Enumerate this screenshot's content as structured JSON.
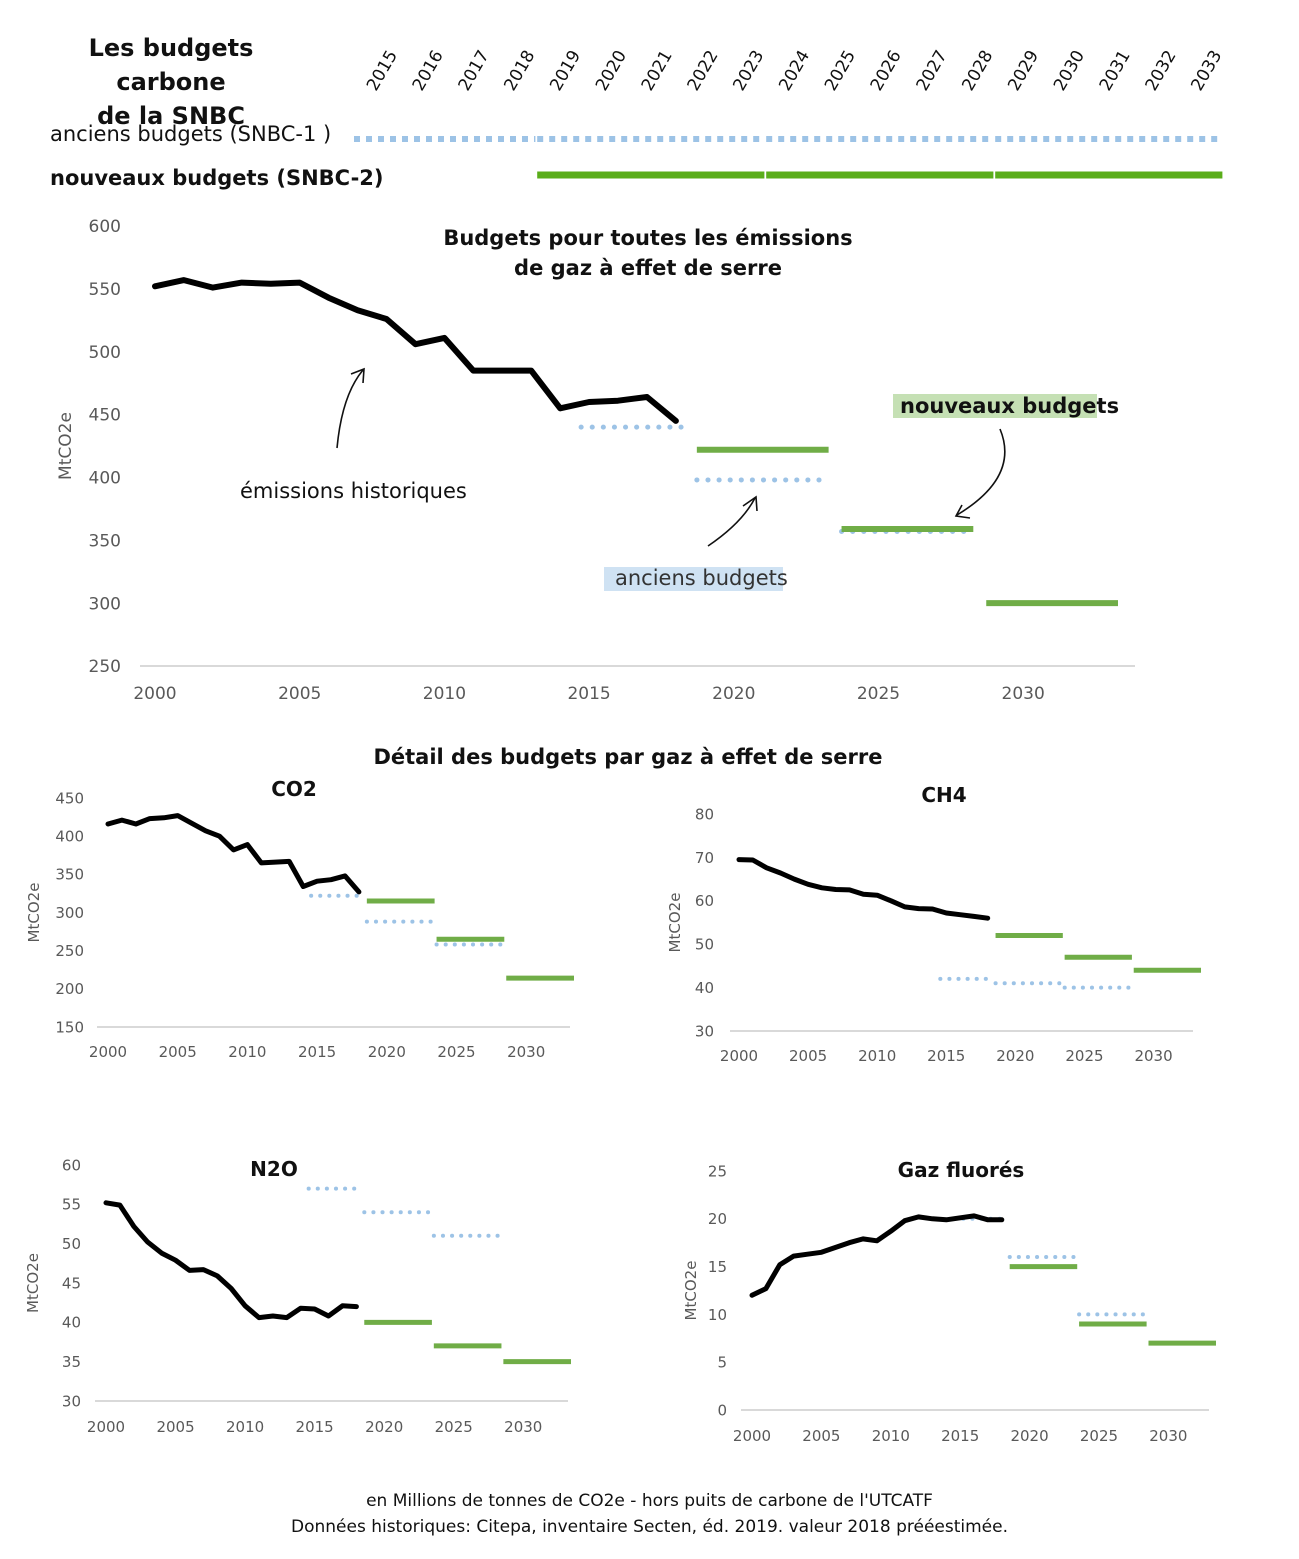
{
  "header": {
    "title_line1": "Les budgets carbone",
    "title_line2": "de la SNBC",
    "old_label": "anciens budgets (SNBC-1 )",
    "new_label": "nouveaux budgets (SNBC-2)",
    "years": [
      "2015",
      "2016",
      "2017",
      "2018",
      "2019",
      "2020",
      "2021",
      "2022",
      "2023",
      "2024",
      "2025",
      "2026",
      "2027",
      "2028",
      "2029",
      "2030",
      "2031",
      "2032",
      "2033"
    ],
    "old_periods": [
      [
        2015,
        2018
      ],
      [
        2019,
        2023
      ],
      [
        2024,
        2028
      ],
      [
        2029,
        2033
      ]
    ],
    "new_periods": [
      [
        2019,
        2023
      ],
      [
        2024,
        2028
      ],
      [
        2029,
        2033
      ]
    ]
  },
  "colors": {
    "history": "#000000",
    "new_budget": "#70ad47",
    "new_budget_header": "#5aad1a",
    "old_budget": "#9dc3e6",
    "axis": "#d9d9d9",
    "tick_text": "#595959",
    "label_new_bg": "#c5e0b4",
    "label_old_bg": "#cfe2f3"
  },
  "section_title": "Détail des budgets par gaz à effet de serre",
  "footer": {
    "line1": "en Millions de tonnes de CO2e  - hors puits de carbone de l'UTCATF",
    "line2": "Données historiques: Citepa, inventaire Secten, éd. 2019. valeur 2018 prééestimée."
  },
  "annotations": {
    "historical": "émissions historiques",
    "new_budgets": "nouveaux budgets",
    "old_budgets": "anciens budgets"
  },
  "chart_data": [
    {
      "id": "total",
      "type": "line",
      "title": "Budgets pour toutes les émissions",
      "title2": "de gaz à effet de serre",
      "ylabel": "MtCO2e",
      "xlim": [
        2000,
        2033
      ],
      "ylim": [
        250,
        600
      ],
      "yticks": [
        250,
        300,
        350,
        400,
        450,
        500,
        550,
        600
      ],
      "xticks": [
        2000,
        2005,
        2010,
        2015,
        2020,
        2025,
        2030
      ],
      "history": {
        "x": [
          2000,
          2001,
          2002,
          2003,
          2004,
          2005,
          2006,
          2007,
          2008,
          2009,
          2010,
          2011,
          2012,
          2013,
          2014,
          2015,
          2016,
          2017,
          2018
        ],
        "y": [
          552,
          557,
          551,
          555,
          554,
          555,
          543,
          533,
          526,
          506,
          511,
          485,
          485,
          485,
          455,
          460,
          461,
          464,
          445
        ]
      },
      "old_budgets": [
        {
          "x": [
            2015,
            2018
          ],
          "value": 440
        },
        {
          "x": [
            2019,
            2023
          ],
          "value": 398
        },
        {
          "x": [
            2024,
            2028
          ],
          "value": 357
        }
      ],
      "new_budgets": [
        {
          "x": [
            2019,
            2023
          ],
          "value": 422
        },
        {
          "x": [
            2024,
            2028
          ],
          "value": 359
        },
        {
          "x": [
            2029,
            2033
          ],
          "value": 300
        }
      ]
    },
    {
      "id": "co2",
      "type": "line",
      "title": "CO2",
      "ylabel": "MtCO2e",
      "xlim": [
        2000,
        2033
      ],
      "ylim": [
        150,
        450
      ],
      "yticks": [
        150,
        200,
        250,
        300,
        350,
        400,
        450
      ],
      "xticks": [
        2000,
        2005,
        2010,
        2015,
        2020,
        2025,
        2030
      ],
      "history": {
        "x": [
          2000,
          2001,
          2002,
          2003,
          2004,
          2005,
          2006,
          2007,
          2008,
          2009,
          2010,
          2011,
          2012,
          2013,
          2014,
          2015,
          2016,
          2017,
          2018
        ],
        "y": [
          416,
          421,
          416,
          423,
          424,
          427,
          417,
          407,
          400,
          382,
          389,
          365,
          366,
          367,
          334,
          341,
          343,
          348,
          327
        ]
      },
      "old_budgets": [
        {
          "x": [
            2015,
            2018
          ],
          "value": 322
        },
        {
          "x": [
            2019,
            2023
          ],
          "value": 288
        },
        {
          "x": [
            2024,
            2028
          ],
          "value": 258
        }
      ],
      "new_budgets": [
        {
          "x": [
            2019,
            2023
          ],
          "value": 315
        },
        {
          "x": [
            2024,
            2028
          ],
          "value": 265
        },
        {
          "x": [
            2029,
            2033
          ],
          "value": 214
        }
      ]
    },
    {
      "id": "ch4",
      "type": "line",
      "title": "CH4",
      "ylabel": "MtCO2e",
      "xlim": [
        2000,
        2033
      ],
      "ylim": [
        30,
        80
      ],
      "yticks": [
        30,
        40,
        50,
        60,
        70,
        80
      ],
      "xticks": [
        2000,
        2005,
        2010,
        2015,
        2020,
        2025,
        2030
      ],
      "history": {
        "x": [
          2000,
          2001,
          2002,
          2003,
          2004,
          2005,
          2006,
          2007,
          2008,
          2009,
          2010,
          2011,
          2012,
          2013,
          2014,
          2015,
          2016,
          2017,
          2018
        ],
        "y": [
          69.5,
          69.4,
          67.6,
          66.4,
          65.0,
          63.8,
          63.0,
          62.6,
          62.5,
          61.5,
          61.3,
          60.0,
          58.6,
          58.2,
          58.1,
          57.2,
          56.8,
          56.4,
          56.0
        ]
      },
      "old_budgets": [
        {
          "x": [
            2015,
            2018
          ],
          "value": 42
        },
        {
          "x": [
            2019,
            2023
          ],
          "value": 41
        },
        {
          "x": [
            2024,
            2028
          ],
          "value": 40
        }
      ],
      "new_budgets": [
        {
          "x": [
            2019,
            2023
          ],
          "value": 52
        },
        {
          "x": [
            2024,
            2028
          ],
          "value": 47
        },
        {
          "x": [
            2029,
            2033
          ],
          "value": 44
        }
      ]
    },
    {
      "id": "n2o",
      "type": "line",
      "title": "N2O",
      "ylabel": "MtCO2e",
      "xlim": [
        2000,
        2033
      ],
      "ylim": [
        30,
        60
      ],
      "yticks": [
        30,
        35,
        40,
        45,
        50,
        55,
        60
      ],
      "xticks": [
        2000,
        2005,
        2010,
        2015,
        2020,
        2025,
        2030
      ],
      "history": {
        "x": [
          2000,
          2001,
          2002,
          2003,
          2004,
          2005,
          2006,
          2007,
          2008,
          2009,
          2010,
          2011,
          2012,
          2013,
          2014,
          2015,
          2016,
          2017,
          2018
        ],
        "y": [
          55.2,
          54.9,
          52.2,
          50.2,
          48.8,
          47.9,
          46.6,
          46.7,
          45.9,
          44.3,
          42.1,
          40.6,
          40.8,
          40.6,
          41.8,
          41.7,
          40.8,
          42.1,
          42.0
        ]
      },
      "old_budgets": [
        {
          "x": [
            2015,
            2018
          ],
          "value": 57
        },
        {
          "x": [
            2019,
            2023
          ],
          "value": 54
        },
        {
          "x": [
            2024,
            2028
          ],
          "value": 51
        }
      ],
      "new_budgets": [
        {
          "x": [
            2019,
            2023
          ],
          "value": 40
        },
        {
          "x": [
            2024,
            2028
          ],
          "value": 37
        },
        {
          "x": [
            2029,
            2033
          ],
          "value": 35
        }
      ]
    },
    {
      "id": "fgas",
      "type": "line",
      "title": "Gaz fluorés",
      "ylabel": "MtCO2e",
      "xlim": [
        2000,
        2033
      ],
      "ylim": [
        0,
        25
      ],
      "yticks": [
        0,
        5,
        10,
        15,
        20,
        25
      ],
      "xticks": [
        2000,
        2005,
        2010,
        2015,
        2020,
        2025,
        2030
      ],
      "history": {
        "x": [
          2000,
          2001,
          2002,
          2003,
          2004,
          2005,
          2006,
          2007,
          2008,
          2009,
          2010,
          2011,
          2012,
          2013,
          2014,
          2015,
          2016,
          2017,
          2018
        ],
        "y": [
          12.0,
          12.7,
          15.2,
          16.1,
          16.3,
          16.5,
          17.0,
          17.5,
          17.9,
          17.7,
          18.7,
          19.8,
          20.2,
          20.0,
          19.9,
          20.1,
          20.3,
          19.9,
          19.9
        ]
      },
      "old_budgets": [
        {
          "x": [
            2015,
            2018
          ],
          "value": 20
        },
        {
          "x": [
            2019,
            2023
          ],
          "value": 16
        },
        {
          "x": [
            2024,
            2028
          ],
          "value": 10
        }
      ],
      "new_budgets": [
        {
          "x": [
            2019,
            2023
          ],
          "value": 15
        },
        {
          "x": [
            2024,
            2028
          ],
          "value": 9
        },
        {
          "x": [
            2029,
            2033
          ],
          "value": 7
        }
      ]
    }
  ]
}
